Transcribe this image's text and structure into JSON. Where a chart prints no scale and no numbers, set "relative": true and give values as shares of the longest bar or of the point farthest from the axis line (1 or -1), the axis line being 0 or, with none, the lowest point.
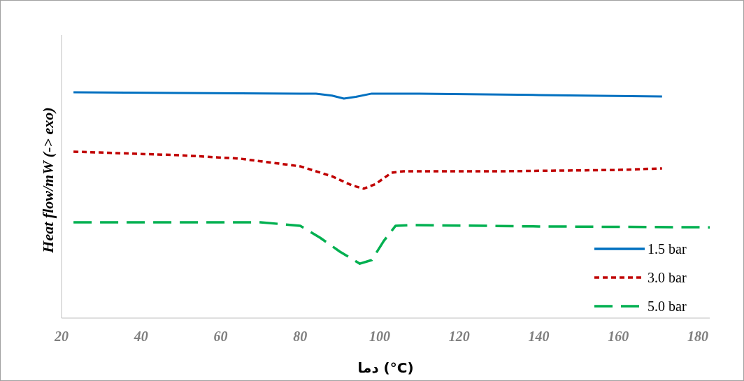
{
  "chart_data": {
    "type": "line",
    "relative": true,
    "xlabel": "دما (°C)",
    "ylabel": "Heat flow/mW  (-> exo)",
    "xlim": [
      20,
      183
    ],
    "xticks": [
      20,
      40,
      60,
      80,
      100,
      120,
      140,
      160,
      180
    ],
    "legend": "bottom right",
    "series": [
      {
        "name": "1.5 bar",
        "color": "#0070c0",
        "line_style": "solid",
        "x": [
          23,
          50,
          80,
          84,
          88,
          91,
          94,
          98,
          110,
          140,
          171
        ],
        "values": [
          1.0,
          0.997,
          0.994,
          0.994,
          0.985,
          0.972,
          0.98,
          0.994,
          0.994,
          0.988,
          0.981
        ]
      },
      {
        "name": "3.0 bar",
        "color": "#c00000",
        "line_style": "dotted",
        "x": [
          23,
          50,
          65,
          80,
          88,
          93,
          96,
          99,
          103,
          106,
          130,
          160,
          171
        ],
        "values": [
          0.737,
          0.721,
          0.706,
          0.672,
          0.628,
          0.588,
          0.573,
          0.594,
          0.644,
          0.65,
          0.65,
          0.656,
          0.663
        ]
      },
      {
        "name": "5.0 bar",
        "color": "#00b050",
        "line_style": "dashed",
        "x": [
          23,
          70,
          80,
          85,
          90,
          95,
          98,
          101,
          104,
          108,
          140,
          183
        ],
        "values": [
          0.424,
          0.424,
          0.409,
          0.356,
          0.294,
          0.241,
          0.257,
          0.341,
          0.409,
          0.412,
          0.406,
          0.402
        ]
      }
    ]
  }
}
